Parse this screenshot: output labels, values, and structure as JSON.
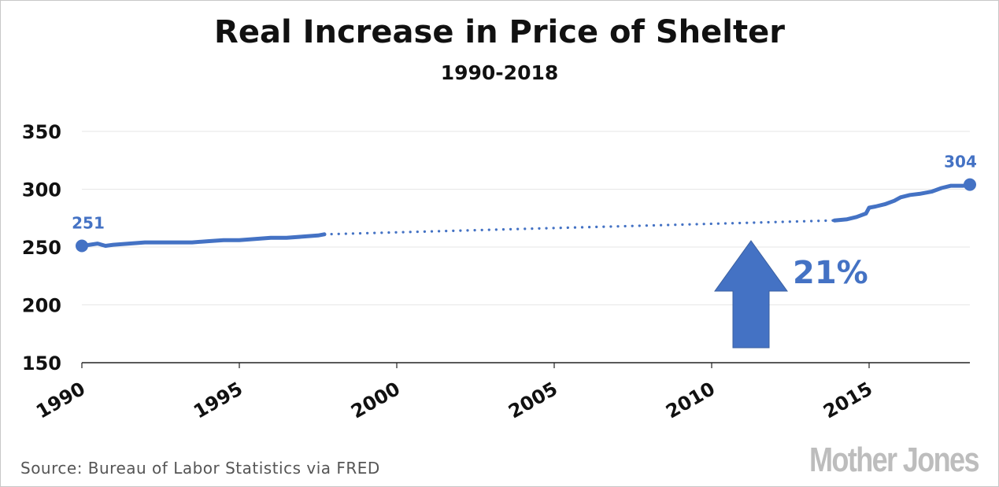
{
  "title": "Real Increase in Price of Shelter",
  "subtitle": "1990-2018",
  "source": "Source: Bureau of Labor Statistics via FRED",
  "logo": "Mother Jones",
  "colors": {
    "series": "#4472c4",
    "grid": "#e6e6e6",
    "axis": "#222222"
  },
  "chart_data": {
    "type": "line",
    "title": "Real Increase in Price of Shelter",
    "subtitle": "1990-2018",
    "xlim": [
      1990,
      2018.2
    ],
    "ylim": [
      150,
      350
    ],
    "yticks": [
      150,
      200,
      250,
      300,
      350
    ],
    "xticks": [
      1990,
      1995,
      2000,
      2005,
      2010,
      2015
    ],
    "grid": "horizontal",
    "series": [
      {
        "style": "solid",
        "points": [
          [
            1990.0,
            251
          ],
          [
            1990.25,
            252
          ],
          [
            1990.5,
            253
          ],
          [
            1990.75,
            251
          ],
          [
            1991.0,
            252
          ],
          [
            1991.5,
            253
          ],
          [
            1992.0,
            254
          ],
          [
            1992.5,
            254
          ],
          [
            1993.0,
            254
          ],
          [
            1993.5,
            254
          ],
          [
            1994.0,
            255
          ],
          [
            1994.5,
            256
          ],
          [
            1995.0,
            256
          ],
          [
            1995.5,
            257
          ],
          [
            1996.0,
            258
          ],
          [
            1996.5,
            258
          ],
          [
            1997.0,
            259
          ],
          [
            1997.5,
            260
          ],
          [
            1997.7,
            261
          ]
        ]
      },
      {
        "style": "dotted",
        "points": [
          [
            1997.7,
            261
          ],
          [
            2013.9,
            273
          ]
        ]
      },
      {
        "style": "solid",
        "points": [
          [
            2013.9,
            273
          ],
          [
            2014.3,
            274
          ],
          [
            2014.6,
            276
          ],
          [
            2014.9,
            279
          ],
          [
            2015.0,
            284
          ],
          [
            2015.2,
            285
          ],
          [
            2015.5,
            287
          ],
          [
            2015.8,
            290
          ],
          [
            2016.0,
            293
          ],
          [
            2016.3,
            295
          ],
          [
            2016.6,
            296
          ],
          [
            2017.0,
            298
          ],
          [
            2017.3,
            301
          ],
          [
            2017.6,
            303
          ],
          [
            2018.0,
            303
          ],
          [
            2018.2,
            304
          ]
        ]
      }
    ],
    "data_labels": [
      {
        "x": 1990.0,
        "y": 251,
        "text": "251"
      },
      {
        "x": 2018.2,
        "y": 304,
        "text": "304"
      }
    ],
    "annotation": {
      "text": "21%",
      "arrow": "up"
    }
  }
}
